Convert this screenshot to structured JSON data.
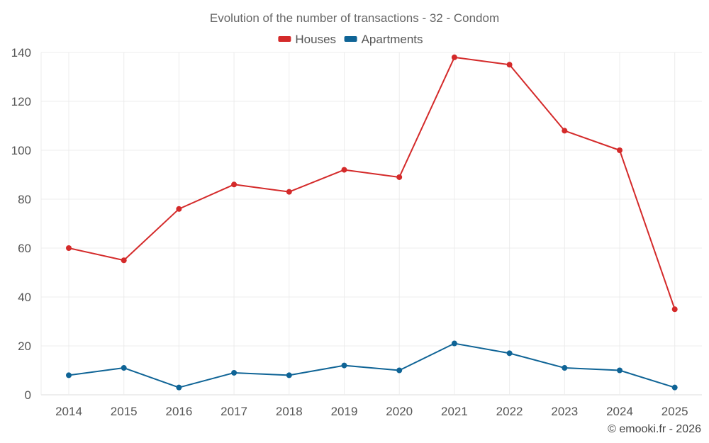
{
  "chart_data": {
    "type": "line",
    "title": "Evolution of the number of transactions - 32 - Condom",
    "xlabel": "",
    "ylabel": "",
    "categories": [
      "2014",
      "2015",
      "2016",
      "2017",
      "2018",
      "2019",
      "2020",
      "2021",
      "2022",
      "2023",
      "2024",
      "2025"
    ],
    "ylim": [
      0,
      140
    ],
    "yticks": [
      0,
      20,
      40,
      60,
      80,
      100,
      120,
      140
    ],
    "grid": true,
    "legend_position": "top-center",
    "series": [
      {
        "name": "Houses",
        "color": "#d42a2a",
        "values": [
          60,
          55,
          76,
          86,
          83,
          92,
          89,
          138,
          135,
          108,
          100,
          35
        ]
      },
      {
        "name": "Apartments",
        "color": "#0f6496",
        "values": [
          8,
          11,
          3,
          9,
          8,
          12,
          10,
          21,
          17,
          11,
          10,
          3
        ]
      }
    ]
  },
  "credit": "© emooki.fr - 2026"
}
